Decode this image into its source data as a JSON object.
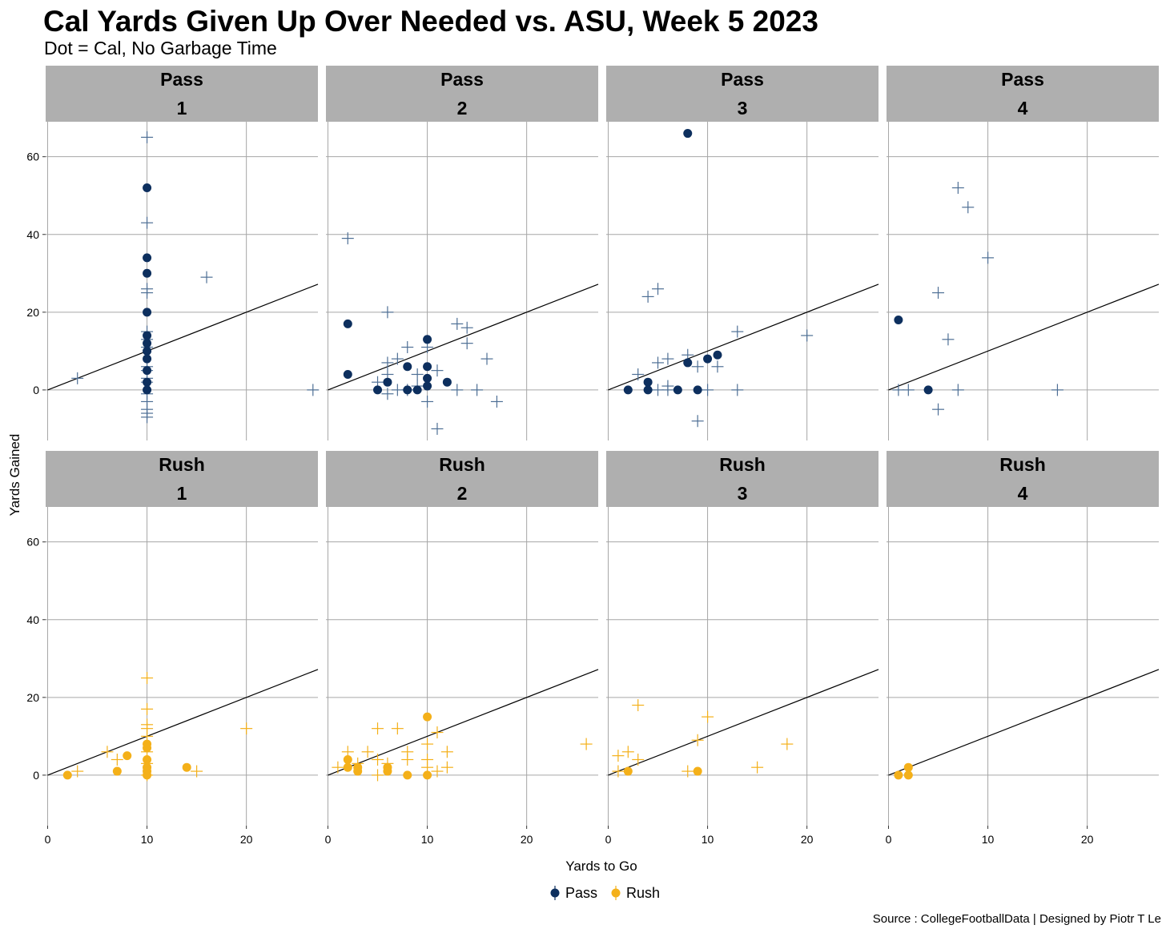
{
  "title": "Cal Yards Given Up Over Needed vs. ASU, Week 5 2023",
  "subtitle": "Dot = Cal, No Garbage Time",
  "caption": "Source : CollegeFootballData | Designed by Piotr T Le",
  "colors": {
    "pass": "#0d2f5e",
    "pass_cross": "#4e6f95",
    "rush": "#f4b019",
    "strip": "#afafaf",
    "grid": "#a6a6a6",
    "line": "#000000"
  },
  "legend": [
    {
      "label": "Pass",
      "color": "#0d2f5e"
    },
    {
      "label": "Rush",
      "color": "#f4b019"
    }
  ],
  "chart_data": {
    "type": "scatter",
    "xlabel": "Yards to Go",
    "ylabel": "Yards Gained",
    "xlim": [
      -0.2,
      27.2
    ],
    "ylim": [
      -13,
      69
    ],
    "xticks": [
      0,
      10,
      20
    ],
    "yticks": [
      0,
      20,
      40,
      60
    ],
    "reference_line": "y = x",
    "panels": [
      {
        "play_type": "Pass",
        "down": "1",
        "cal": [
          [
            10,
            52
          ],
          [
            10,
            34
          ],
          [
            10,
            30
          ],
          [
            10,
            20
          ],
          [
            10,
            14
          ],
          [
            10,
            12
          ],
          [
            10,
            10
          ],
          [
            10,
            8
          ],
          [
            10,
            5
          ],
          [
            10,
            2
          ],
          [
            10,
            0
          ]
        ],
        "opponent": [
          [
            10,
            65
          ],
          [
            10,
            43
          ],
          [
            10,
            26
          ],
          [
            10,
            25
          ],
          [
            10,
            15
          ],
          [
            10,
            13
          ],
          [
            10,
            11
          ],
          [
            10,
            6
          ],
          [
            10,
            5
          ],
          [
            10,
            3
          ],
          [
            10,
            2
          ],
          [
            10,
            -1
          ],
          [
            10,
            -3
          ],
          [
            10,
            -5
          ],
          [
            10,
            -6
          ],
          [
            10,
            -7
          ],
          [
            16,
            29
          ],
          [
            3,
            3
          ],
          [
            26.7,
            0
          ]
        ]
      },
      {
        "play_type": "Pass",
        "down": "2",
        "cal": [
          [
            2,
            17
          ],
          [
            2,
            4
          ],
          [
            5,
            0
          ],
          [
            6,
            2
          ],
          [
            8,
            6
          ],
          [
            8,
            0
          ],
          [
            9,
            0
          ],
          [
            10,
            13
          ],
          [
            10,
            6
          ],
          [
            10,
            3
          ],
          [
            10,
            1
          ],
          [
            12,
            2
          ]
        ],
        "opponent": [
          [
            2,
            39
          ],
          [
            6,
            20
          ],
          [
            13,
            17
          ],
          [
            14,
            16
          ],
          [
            14,
            12
          ],
          [
            16,
            8
          ],
          [
            7,
            8
          ],
          [
            8,
            11
          ],
          [
            10,
            11
          ],
          [
            6,
            7
          ],
          [
            5,
            2
          ],
          [
            6,
            4
          ],
          [
            9,
            4
          ],
          [
            11,
            5
          ],
          [
            10,
            -3
          ],
          [
            11,
            -10
          ],
          [
            13,
            0
          ],
          [
            15,
            0
          ],
          [
            17,
            -3
          ],
          [
            6,
            -1
          ],
          [
            7,
            0
          ],
          [
            8,
            0
          ],
          [
            9,
            1
          ]
        ]
      },
      {
        "play_type": "Pass",
        "down": "3",
        "cal": [
          [
            8,
            66
          ],
          [
            2,
            0
          ],
          [
            4,
            2
          ],
          [
            4,
            0
          ],
          [
            7,
            0
          ],
          [
            8,
            7
          ],
          [
            9,
            0
          ],
          [
            10,
            8
          ],
          [
            11,
            9
          ]
        ],
        "opponent": [
          [
            4,
            24
          ],
          [
            5,
            26
          ],
          [
            13,
            15
          ],
          [
            20,
            14
          ],
          [
            3,
            4
          ],
          [
            5,
            7
          ],
          [
            6,
            8
          ],
          [
            8,
            9
          ],
          [
            9,
            6
          ],
          [
            11,
            6
          ],
          [
            5,
            0
          ],
          [
            6,
            0
          ],
          [
            6,
            1
          ],
          [
            10,
            0
          ],
          [
            13,
            0
          ],
          [
            9,
            -8
          ]
        ]
      },
      {
        "play_type": "Pass",
        "down": "4",
        "cal": [
          [
            1,
            18
          ],
          [
            4,
            0
          ]
        ],
        "opponent": [
          [
            7,
            52
          ],
          [
            8,
            47
          ],
          [
            10,
            34
          ],
          [
            5,
            25
          ],
          [
            6,
            13
          ],
          [
            1,
            0
          ],
          [
            2,
            0
          ],
          [
            7,
            0
          ],
          [
            5,
            -5
          ],
          [
            17,
            0
          ]
        ]
      },
      {
        "play_type": "Rush",
        "down": "1",
        "cal": [
          [
            2,
            0
          ],
          [
            7,
            1
          ],
          [
            8,
            5
          ],
          [
            10,
            8
          ],
          [
            10,
            7
          ],
          [
            10,
            4
          ],
          [
            10,
            2
          ],
          [
            10,
            1
          ],
          [
            10,
            0
          ],
          [
            14,
            2
          ]
        ],
        "opponent": [
          [
            10,
            25
          ],
          [
            10,
            17
          ],
          [
            10,
            13
          ],
          [
            10,
            12
          ],
          [
            10,
            10
          ],
          [
            10,
            6
          ],
          [
            10,
            3
          ],
          [
            10,
            0
          ],
          [
            20,
            12
          ],
          [
            6,
            6
          ],
          [
            7,
            4
          ],
          [
            3,
            1
          ],
          [
            15,
            1
          ]
        ]
      },
      {
        "play_type": "Rush",
        "down": "2",
        "cal": [
          [
            10,
            15
          ],
          [
            2,
            4
          ],
          [
            2,
            2
          ],
          [
            3,
            2
          ],
          [
            3,
            1
          ],
          [
            6,
            2
          ],
          [
            6,
            1
          ],
          [
            8,
            0
          ],
          [
            10,
            0
          ]
        ],
        "opponent": [
          [
            26,
            8
          ],
          [
            5,
            12
          ],
          [
            7,
            12
          ],
          [
            11,
            11
          ],
          [
            10,
            8
          ],
          [
            12,
            6
          ],
          [
            8,
            6
          ],
          [
            8,
            4
          ],
          [
            2,
            6
          ],
          [
            4,
            6
          ],
          [
            5,
            4
          ],
          [
            1,
            2
          ],
          [
            3,
            3
          ],
          [
            6,
            3
          ],
          [
            10,
            4
          ],
          [
            10,
            2
          ],
          [
            12,
            2
          ],
          [
            11,
            1
          ],
          [
            5,
            0
          ]
        ]
      },
      {
        "play_type": "Rush",
        "down": "3",
        "cal": [
          [
            2,
            1
          ],
          [
            9,
            1
          ]
        ],
        "opponent": [
          [
            3,
            18
          ],
          [
            10,
            15
          ],
          [
            9,
            9
          ],
          [
            18,
            8
          ],
          [
            15,
            2
          ],
          [
            2,
            6
          ],
          [
            3,
            4
          ],
          [
            1,
            5
          ],
          [
            1,
            1
          ],
          [
            8,
            1
          ]
        ]
      },
      {
        "play_type": "Rush",
        "down": "4",
        "cal": [
          [
            1,
            0
          ],
          [
            2,
            2
          ],
          [
            2,
            0
          ]
        ],
        "opponent": []
      }
    ]
  }
}
